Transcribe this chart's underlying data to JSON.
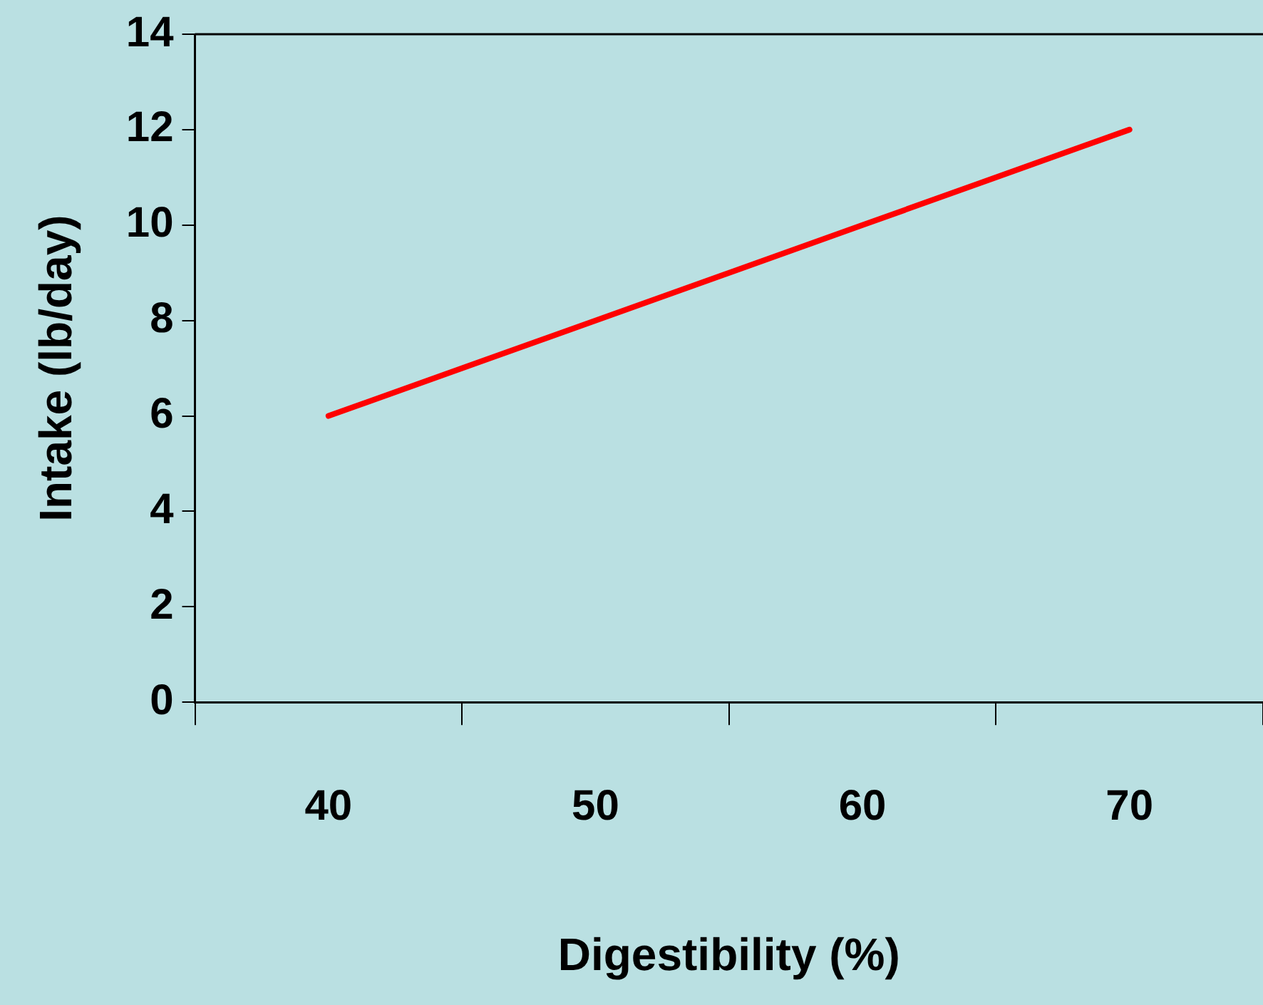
{
  "chart_data": {
    "type": "line",
    "xlabel": "Digestibility (%)",
    "ylabel": "Intake (lb/day)",
    "categories": [
      "40",
      "50",
      "60",
      "70"
    ],
    "series": [
      {
        "color": "#ff0000",
        "values": [
          6,
          8,
          10,
          12
        ]
      }
    ],
    "ylim": [
      0,
      14
    ],
    "yticks": [
      0,
      2,
      4,
      6,
      8,
      10,
      12,
      14
    ],
    "grid": false,
    "legend": false,
    "marker": "none",
    "line_style": "solid"
  }
}
